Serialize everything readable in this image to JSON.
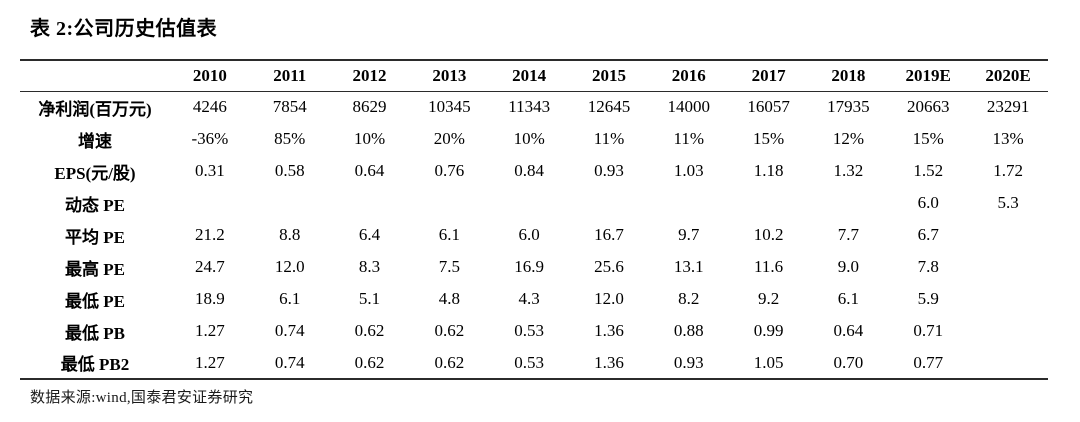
{
  "page": {
    "title": "表 2:公司历史估值表"
  },
  "table": {
    "header": [
      "",
      "2010",
      "2011",
      "2012",
      "2013",
      "2014",
      "2015",
      "2016",
      "2017",
      "2018",
      "2019E",
      "2020E"
    ],
    "rows": [
      {
        "label": "净利润(百万元)",
        "values": [
          "4246",
          "7854",
          "8629",
          "10345",
          "11343",
          "12645",
          "14000",
          "16057",
          "17935",
          "20663",
          "23291"
        ]
      },
      {
        "label": "增速",
        "values": [
          "-36%",
          "85%",
          "10%",
          "20%",
          "10%",
          "11%",
          "11%",
          "15%",
          "12%",
          "15%",
          "13%"
        ]
      },
      {
        "label": "EPS(元/股)",
        "values": [
          "0.31",
          "0.58",
          "0.64",
          "0.76",
          "0.84",
          "0.93",
          "1.03",
          "1.18",
          "1.32",
          "1.52",
          "1.72"
        ]
      },
      {
        "label": "动态 PE",
        "values": [
          "",
          "",
          "",
          "",
          "",
          "",
          "",
          "",
          "",
          "6.0",
          "5.3"
        ]
      },
      {
        "label": "平均 PE",
        "values": [
          "21.2",
          "8.8",
          "6.4",
          "6.1",
          "6.0",
          "16.7",
          "9.7",
          "10.2",
          "7.7",
          "6.7",
          ""
        ]
      },
      {
        "label": "最高 PE",
        "values": [
          "24.7",
          "12.0",
          "8.3",
          "7.5",
          "16.9",
          "25.6",
          "13.1",
          "11.6",
          "9.0",
          "7.8",
          ""
        ]
      },
      {
        "label": "最低 PE",
        "values": [
          "18.9",
          "6.1",
          "5.1",
          "4.8",
          "4.3",
          "12.0",
          "8.2",
          "9.2",
          "6.1",
          "5.9",
          ""
        ]
      },
      {
        "label": "最低 PB",
        "values": [
          "1.27",
          "0.74",
          "0.62",
          "0.62",
          "0.53",
          "1.36",
          "0.88",
          "0.99",
          "0.64",
          "0.71",
          ""
        ]
      },
      {
        "label": "最低 PB2",
        "values": [
          "1.27",
          "0.74",
          "0.62",
          "0.62",
          "0.53",
          "1.36",
          "0.93",
          "1.05",
          "0.70",
          "0.77",
          ""
        ]
      }
    ]
  },
  "footer": {
    "source": "数据来源:wind,国泰君安证券研究"
  }
}
